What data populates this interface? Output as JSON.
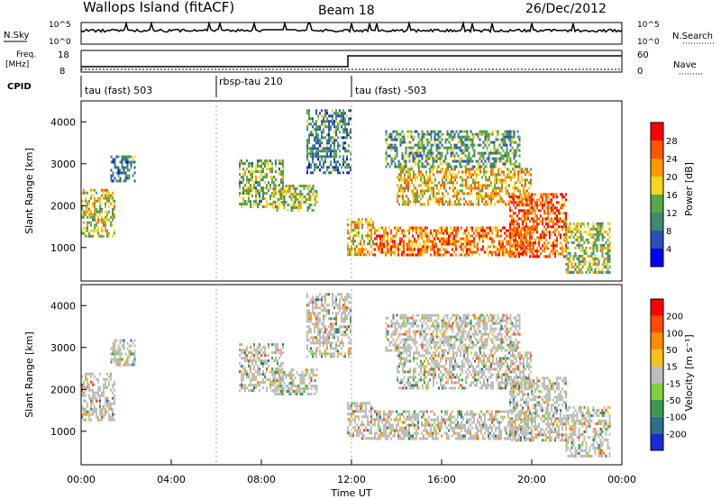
{
  "header": {
    "station": "Wallops Island (fitACF)",
    "beam": "Beam 18",
    "date": "26/Dec/2012"
  },
  "top_panels": {
    "nsky_label": "N.Sky",
    "nsky_ticks": [
      "10^5",
      "10^0"
    ],
    "nsky_right_ticks": [
      "10^5",
      "10^0"
    ],
    "nsearch_label": "N.Search",
    "freq_label_1": "Freq.",
    "freq_label_2": "[MHz]",
    "freq_ticks": [
      "18",
      "8"
    ],
    "nave_label": "Nave",
    "nave_ticks": [
      "60",
      "0"
    ],
    "cpid_label": "CPID",
    "cpid_segments": [
      {
        "label": "tau (fast) 503",
        "start_hour": 0
      },
      {
        "label": "rbsp-tau 210",
        "start_hour": 6
      },
      {
        "label": "tau (fast) -503",
        "start_hour": 12
      }
    ]
  },
  "chart_data": [
    {
      "type": "heatmap",
      "quantity": "power",
      "ylabel": "Slant Range [km]",
      "yticks": [
        1000,
        2000,
        3000,
        4000
      ],
      "ylim": [
        200,
        4500
      ],
      "xlim": [
        0,
        24
      ],
      "colorbar_label": "Power [dB]",
      "colorbar_ticks": [
        28,
        24,
        20,
        16,
        12,
        8,
        4
      ],
      "colorbar_colors": [
        "#0000ff",
        "#2b50b8",
        "#3f8a6e",
        "#57a84a",
        "#f2d81a",
        "#ff9900",
        "#ff5500",
        "#ff0000"
      ],
      "echo_bands": [
        {
          "x0": 0.0,
          "x1": 1.5,
          "r0": 1300,
          "r1": 2400,
          "power": 18
        },
        {
          "x0": 1.3,
          "x1": 2.4,
          "r0": 2600,
          "r1": 3200,
          "power": 10
        },
        {
          "x0": 7.0,
          "x1": 9.0,
          "r0": 2000,
          "r1": 3100,
          "power": 14
        },
        {
          "x0": 8.5,
          "x1": 10.5,
          "r0": 1900,
          "r1": 2500,
          "power": 16
        },
        {
          "x0": 10.0,
          "x1": 12.0,
          "r0": 2800,
          "r1": 4300,
          "power": 10
        },
        {
          "x0": 11.8,
          "x1": 13.0,
          "r0": 800,
          "r1": 1700,
          "power": 20
        },
        {
          "x0": 13.0,
          "x1": 20.0,
          "r0": 800,
          "r1": 1500,
          "power": 24
        },
        {
          "x0": 14.0,
          "x1": 20.0,
          "r0": 2000,
          "r1": 2900,
          "power": 20
        },
        {
          "x0": 13.5,
          "x1": 19.5,
          "r0": 2900,
          "r1": 3800,
          "power": 12
        },
        {
          "x0": 19.0,
          "x1": 21.5,
          "r0": 800,
          "r1": 2300,
          "power": 26
        },
        {
          "x0": 21.5,
          "x1": 23.5,
          "r0": 400,
          "r1": 1600,
          "power": 16
        }
      ]
    },
    {
      "type": "heatmap",
      "quantity": "velocity",
      "ylabel": "Slant Range [km]",
      "yticks": [
        1000,
        2000,
        3000,
        4000
      ],
      "ylim": [
        200,
        4500
      ],
      "xlim": [
        0,
        24
      ],
      "colorbar_label": "Velocity [m s⁻¹]",
      "colorbar_ticks": [
        200,
        100,
        50,
        15,
        -15,
        -50,
        -100,
        -200
      ],
      "colorbar_colors": [
        "#1a2ad6",
        "#2e6f8c",
        "#3c9a50",
        "#7fd13b",
        "#bdbdbd",
        "#f5c21a",
        "#ff8c00",
        "#ff4a00",
        "#ff0000"
      ],
      "echo_bands": [
        {
          "x0": 0.0,
          "x1": 1.5,
          "r0": 1300,
          "r1": 2400,
          "velocity": 0
        },
        {
          "x0": 1.3,
          "x1": 2.4,
          "r0": 2600,
          "r1": 3200,
          "velocity": 0
        },
        {
          "x0": 7.0,
          "x1": 9.0,
          "r0": 2000,
          "r1": 3100,
          "velocity": 0
        },
        {
          "x0": 8.5,
          "x1": 10.5,
          "r0": 1900,
          "r1": 2500,
          "velocity": 30
        },
        {
          "x0": 10.0,
          "x1": 12.0,
          "r0": 2800,
          "r1": 4300,
          "velocity": 30
        },
        {
          "x0": 11.8,
          "x1": 13.0,
          "r0": 800,
          "r1": 1700,
          "velocity": 0
        },
        {
          "x0": 13.0,
          "x1": 20.0,
          "r0": 800,
          "r1": 1500,
          "velocity": 0
        },
        {
          "x0": 14.0,
          "x1": 20.0,
          "r0": 2000,
          "r1": 2900,
          "velocity": 0
        },
        {
          "x0": 13.5,
          "x1": 19.5,
          "r0": 2900,
          "r1": 3800,
          "velocity": 0
        },
        {
          "x0": 19.0,
          "x1": 21.5,
          "r0": 800,
          "r1": 2300,
          "velocity": 0
        },
        {
          "x0": 21.5,
          "x1": 23.5,
          "r0": 400,
          "r1": 1600,
          "velocity": 0
        }
      ]
    }
  ],
  "time_axis": {
    "label": "Time UT",
    "ticks": [
      "00:00",
      "04:00",
      "08:00",
      "12:00",
      "16:00",
      "20:00",
      "00:00"
    ]
  }
}
